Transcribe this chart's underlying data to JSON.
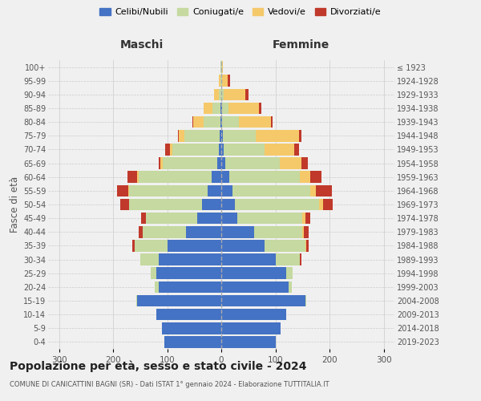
{
  "age_groups": [
    "0-4",
    "5-9",
    "10-14",
    "15-19",
    "20-24",
    "25-29",
    "30-34",
    "35-39",
    "40-44",
    "45-49",
    "50-54",
    "55-59",
    "60-64",
    "65-69",
    "70-74",
    "75-79",
    "80-84",
    "85-89",
    "90-94",
    "95-99",
    "100+"
  ],
  "birth_years": [
    "2019-2023",
    "2014-2018",
    "2009-2013",
    "2004-2008",
    "1999-2003",
    "1994-1998",
    "1989-1993",
    "1984-1988",
    "1979-1983",
    "1974-1978",
    "1969-1973",
    "1964-1968",
    "1959-1963",
    "1954-1958",
    "1949-1953",
    "1944-1948",
    "1939-1943",
    "1934-1938",
    "1929-1933",
    "1924-1928",
    "≤ 1923"
  ],
  "maschi": {
    "celibi": [
      105,
      110,
      120,
      155,
      115,
      120,
      115,
      100,
      65,
      45,
      35,
      25,
      18,
      8,
      5,
      3,
      2,
      2,
      0,
      0,
      0
    ],
    "coniugati": [
      0,
      0,
      0,
      2,
      8,
      10,
      35,
      60,
      80,
      95,
      135,
      145,
      135,
      100,
      85,
      65,
      30,
      15,
      5,
      2,
      1
    ],
    "vedovi": [
      0,
      0,
      0,
      0,
      0,
      0,
      0,
      0,
      0,
      0,
      1,
      2,
      3,
      5,
      5,
      10,
      20,
      15,
      8,
      3,
      0
    ],
    "divorziati": [
      0,
      0,
      0,
      0,
      0,
      0,
      0,
      5,
      8,
      8,
      15,
      20,
      18,
      2,
      8,
      2,
      2,
      0,
      0,
      0,
      0
    ]
  },
  "femmine": {
    "nubili": [
      100,
      110,
      120,
      155,
      125,
      120,
      100,
      80,
      60,
      30,
      25,
      20,
      15,
      8,
      5,
      3,
      2,
      2,
      0,
      0,
      0
    ],
    "coniugate": [
      0,
      0,
      0,
      2,
      5,
      12,
      45,
      75,
      90,
      120,
      155,
      145,
      130,
      100,
      75,
      60,
      30,
      12,
      5,
      2,
      1
    ],
    "vedove": [
      0,
      0,
      0,
      0,
      0,
      0,
      0,
      2,
      3,
      5,
      8,
      10,
      20,
      40,
      55,
      80,
      60,
      55,
      40,
      10,
      2
    ],
    "divorziate": [
      0,
      0,
      0,
      0,
      0,
      0,
      3,
      5,
      8,
      10,
      18,
      30,
      20,
      12,
      8,
      5,
      3,
      5,
      5,
      5,
      0
    ]
  },
  "colors": {
    "celibi": "#4472c4",
    "coniugati": "#c5d9a0",
    "vedovi": "#f5c96a",
    "divorziati": "#c0392b"
  },
  "xlim": 320,
  "title": "Popolazione per età, sesso e stato civile - 2024",
  "subtitle": "COMUNE DI CANICATTINI BAGNI (SR) - Dati ISTAT 1° gennaio 2024 - Elaborazione TUTTITALIA.IT",
  "maschi_label": "Maschi",
  "femmine_label": "Femmine",
  "ylabel_left": "Fasce di età",
  "legend_labels": [
    "Celibi/Nubili",
    "Coniugati/e",
    "Vedovi/e",
    "Divorziati/e"
  ],
  "background_color": "#f0f0f0"
}
